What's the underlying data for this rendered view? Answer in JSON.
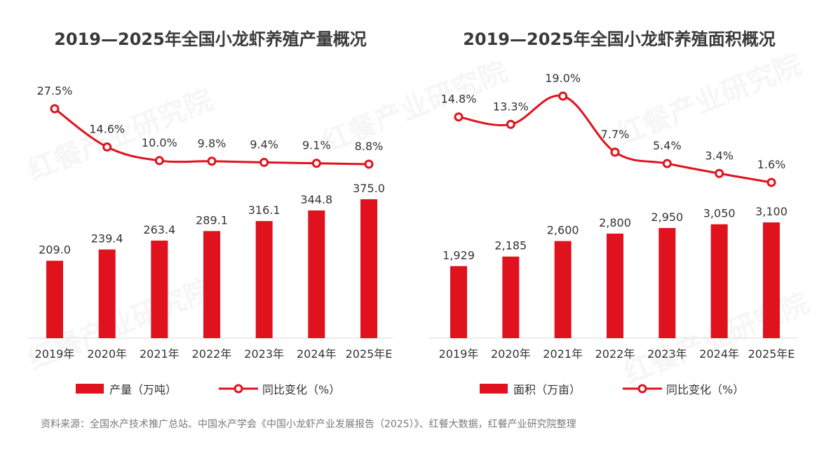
{
  "chart_data": [
    {
      "type": "bar+line",
      "title": "2019—2025年全国小龙虾养殖产量概况",
      "categories": [
        "2019年",
        "2020年",
        "2021年",
        "2022年",
        "2023年",
        "2024年",
        "2025年E"
      ],
      "series": [
        {
          "name": "产量（万吨）",
          "kind": "bar",
          "values": [
            209.0,
            239.4,
            263.4,
            289.1,
            316.1,
            344.8,
            375.0
          ],
          "labels": [
            "209.0",
            "239.4",
            "263.4",
            "289.1",
            "316.1",
            "344.8",
            "375.0"
          ]
        },
        {
          "name": "同比变化（%）",
          "kind": "line",
          "values": [
            27.5,
            14.6,
            10.0,
            9.8,
            9.4,
            9.1,
            8.8
          ],
          "labels": [
            "27.5%",
            "14.6%",
            "10.0%",
            "9.8%",
            "9.4%",
            "9.1%",
            "8.8%"
          ]
        }
      ],
      "bar_color": "#e0121d",
      "line_color": "#e0121d",
      "grid": false
    },
    {
      "type": "bar+line",
      "title": "2019—2025年全国小龙虾养殖面积概况",
      "categories": [
        "2019年",
        "2020年",
        "2021年",
        "2022年",
        "2023年",
        "2024年",
        "2025年E"
      ],
      "series": [
        {
          "name": "面积（万亩）",
          "kind": "bar",
          "values": [
            1929,
            2185,
            2600,
            2800,
            2950,
            3050,
            3100
          ],
          "labels": [
            "1,929",
            "2,185",
            "2,600",
            "2,800",
            "2,950",
            "3,050",
            "3,100"
          ]
        },
        {
          "name": "同比变化（%）",
          "kind": "line",
          "values": [
            14.8,
            13.3,
            19.0,
            7.7,
            5.4,
            3.4,
            1.6
          ],
          "labels": [
            "14.8%",
            "13.3%",
            "19.0%",
            "7.7%",
            "5.4%",
            "3.4%",
            "1.6%"
          ]
        }
      ],
      "bar_color": "#e0121d",
      "line_color": "#e0121d",
      "grid": false
    }
  ],
  "source": "资料来源：全国水产技术推广总站、中国水产学会《中国小龙虾产业发展报告（2025）》、红餐大数据，红餐产业研究院整理",
  "watermark": "红餐产业研究院"
}
